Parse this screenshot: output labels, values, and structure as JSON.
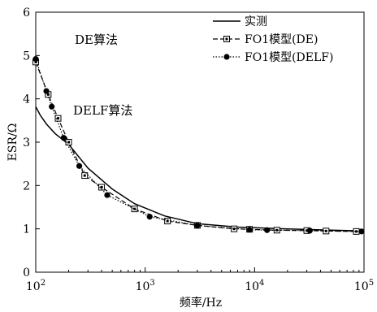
{
  "chart_data": {
    "type": "line",
    "xlabel": "频率/Hz",
    "ylabel": "ESR/Ω",
    "x_scale": "log",
    "xlim": [
      100,
      100000
    ],
    "ylim": [
      0,
      6
    ],
    "x_ticks": [
      {
        "value": 100,
        "base": "10",
        "exp": "2"
      },
      {
        "value": 1000,
        "base": "10",
        "exp": "3"
      },
      {
        "value": 10000,
        "base": "10",
        "exp": "4"
      },
      {
        "value": 100000,
        "base": "10",
        "exp": "5"
      }
    ],
    "y_ticks": [
      0,
      1,
      2,
      3,
      4,
      5,
      6
    ],
    "grid": false,
    "legend_position": "top-right",
    "annotations": [
      "DE算法",
      "DELF算法"
    ],
    "series": [
      {
        "name": "实测",
        "style": "solid",
        "marker": "none",
        "x": [
          100,
          110,
          125,
          150,
          200,
          300,
          500,
          800,
          1500,
          3000,
          7000,
          20000,
          50000,
          100000
        ],
        "y": [
          3.82,
          3.62,
          3.42,
          3.2,
          2.95,
          2.4,
          1.92,
          1.58,
          1.3,
          1.12,
          1.04,
          1.0,
          0.97,
          0.95
        ]
      },
      {
        "name": "FO1模型(DE)",
        "style": "dashed",
        "marker": "open-square",
        "x": [
          100,
          130,
          160,
          200,
          280,
          400,
          800,
          1600,
          3000,
          6500,
          9000,
          16000,
          30000,
          45000,
          85000
        ],
        "y": [
          4.85,
          4.1,
          3.55,
          3.0,
          2.23,
          1.96,
          1.46,
          1.18,
          1.08,
          1.0,
          0.99,
          0.97,
          0.96,
          0.95,
          0.94
        ]
      },
      {
        "name": "FO1模型(DELF)",
        "style": "dotted",
        "marker": "filled-circle",
        "x": [
          100,
          125,
          140,
          180,
          250,
          450,
          1100,
          3000,
          9000,
          13000,
          32000,
          95000
        ],
        "y": [
          4.92,
          4.18,
          3.82,
          3.1,
          2.45,
          1.78,
          1.28,
          1.08,
          0.98,
          0.97,
          0.96,
          0.94
        ]
      }
    ]
  }
}
